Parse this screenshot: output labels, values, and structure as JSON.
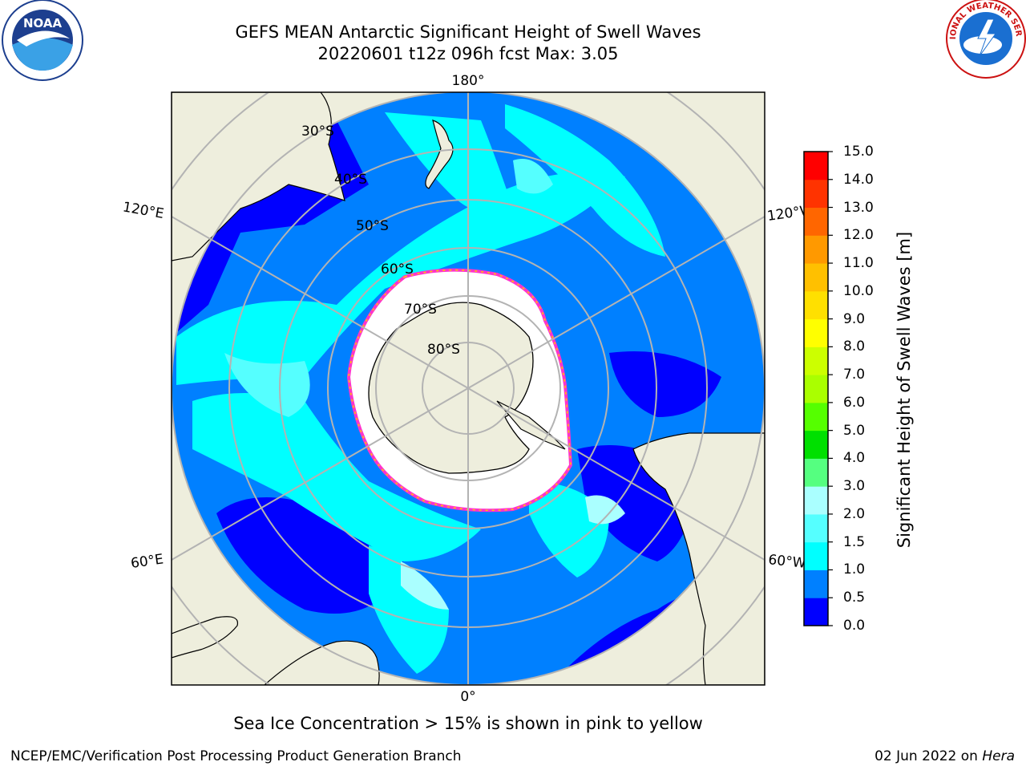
{
  "header": {
    "title_line1": "GEFS MEAN Antarctic Significant Height of Swell Waves",
    "title_line2": "20220601 t12z 096h fcst   Max: 3.05",
    "left_logo_text": "NOAA",
    "right_logo_text": "NATIONAL WEATHER SERVICE"
  },
  "map": {
    "projection": "south-polar-stereographic",
    "longitude_labels": {
      "top": "180°",
      "bottom": "0°",
      "upper_left": "120°E",
      "upper_right": "120°W",
      "lower_left": "60°E",
      "lower_right": "60°W"
    },
    "latitude_labels": [
      "30°S",
      "40°S",
      "50°S",
      "60°S",
      "70°S",
      "80°S"
    ],
    "colors": {
      "land": "#eeeedd",
      "sea_ice": "#ffffff",
      "ice_edge": "#ff33cc",
      "grid": "#b3b3b3"
    }
  },
  "colorbar": {
    "label": "Significant Height of Swell Waves [m]",
    "ticks": [
      "0.0",
      "0.5",
      "1.0",
      "1.5",
      "2.0",
      "3.0",
      "4.0",
      "5.0",
      "6.0",
      "7.0",
      "8.0",
      "9.0",
      "10.0",
      "11.0",
      "12.0",
      "13.0",
      "14.0",
      "15.0"
    ],
    "colors": [
      "#0000ff",
      "#0080ff",
      "#00ffff",
      "#55ffff",
      "#aaffff",
      "#55ff80",
      "#00e000",
      "#55ff00",
      "#aaff00",
      "#ccff00",
      "#ffff00",
      "#ffe000",
      "#ffc000",
      "#ff9900",
      "#ff6600",
      "#ff3300",
      "#ff0000"
    ]
  },
  "footer": {
    "note": "Sea Ice Concentration > 15% is shown in pink to yellow",
    "credit": "NCEP/EMC/Verification Post Processing Product Generation Branch",
    "date": "02 Jun 2022 on",
    "machine": "Hera"
  }
}
